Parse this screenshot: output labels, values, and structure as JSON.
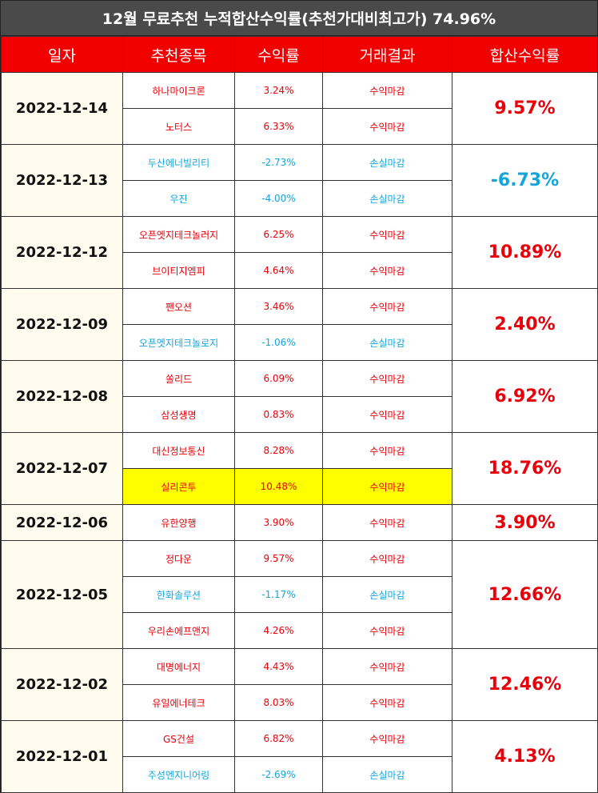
{
  "header": {
    "title": "12월 무료추천 누적합산수익률(추천가대비최고가) 74.96%",
    "columns": [
      "일자",
      "추천종목",
      "수익률",
      "거래결과",
      "합산수익률"
    ]
  },
  "table": {
    "rows": [
      {
        "date": "2022-12-14",
        "total": "9.57%",
        "items": [
          {
            "name": "하나마이크론",
            "return": "3.24%",
            "result": "수익마감"
          },
          {
            "name": "노터스",
            "return": "6.33%",
            "result": "수익마감"
          }
        ]
      },
      {
        "date": "2022-12-13",
        "total": "-6.73%",
        "items": [
          {
            "name": "두산에너빌리티",
            "return": "-2.73%",
            "result": "손실마감"
          },
          {
            "name": "우진",
            "return": "-4.00%",
            "result": "손실마감"
          }
        ]
      },
      {
        "date": "2022-12-12",
        "total": "10.89%",
        "items": [
          {
            "name": "오픈엣지테크놀러지",
            "return": "6.25%",
            "result": "수익마감"
          },
          {
            "name": "브이티지엠피",
            "return": "4.64%",
            "result": "수익마감"
          }
        ]
      },
      {
        "date": "2022-12-09",
        "total": "2.40%",
        "items": [
          {
            "name": "팬오션",
            "return": "3.46%",
            "result": "수익마감"
          },
          {
            "name": "오픈엣지테크놀로지",
            "return": "-1.06%",
            "result": "손실마감"
          }
        ]
      },
      {
        "date": "2022-12-08",
        "total": "6.92%",
        "items": [
          {
            "name": "쏠리드",
            "return": "6.09%",
            "result": "수익마감"
          },
          {
            "name": "삼성생명",
            "return": "0.83%",
            "result": "수익마감"
          }
        ]
      },
      {
        "date": "2022-12-07",
        "total": "18.76%",
        "items": [
          {
            "name": "대신정보통신",
            "return": "8.28%",
            "result": "수익마감"
          },
          {
            "name": "실리콘투",
            "return": "10.48%",
            "result": "수익마감",
            "highlight": true
          }
        ]
      },
      {
        "date": "2022-12-06",
        "total": "3.90%",
        "items": [
          {
            "name": "유한양행",
            "return": "3.90%",
            "result": "수익마감"
          }
        ]
      },
      {
        "date": "2022-12-05",
        "total": "12.66%",
        "items": [
          {
            "name": "정다운",
            "return": "9.57%",
            "result": "수익마감"
          },
          {
            "name": "한화솔루션",
            "return": "-1.17%",
            "result": "손실마감"
          },
          {
            "name": "우리손에프앤지",
            "return": "4.26%",
            "result": "수익마감"
          }
        ]
      },
      {
        "date": "2022-12-02",
        "total": "12.46%",
        "items": [
          {
            "name": "대명에너지",
            "return": "4.43%",
            "result": "수익마감"
          },
          {
            "name": "유일에너테크",
            "return": "8.03%",
            "result": "수익마감"
          }
        ]
      },
      {
        "date": "2022-12-01",
        "total": "4.13%",
        "items": [
          {
            "name": "GS건설",
            "return": "6.82%",
            "result": "수익마감"
          },
          {
            "name": "주성엔지니어링",
            "return": "-2.69%",
            "result": "손실마감"
          }
        ]
      }
    ]
  }
}
